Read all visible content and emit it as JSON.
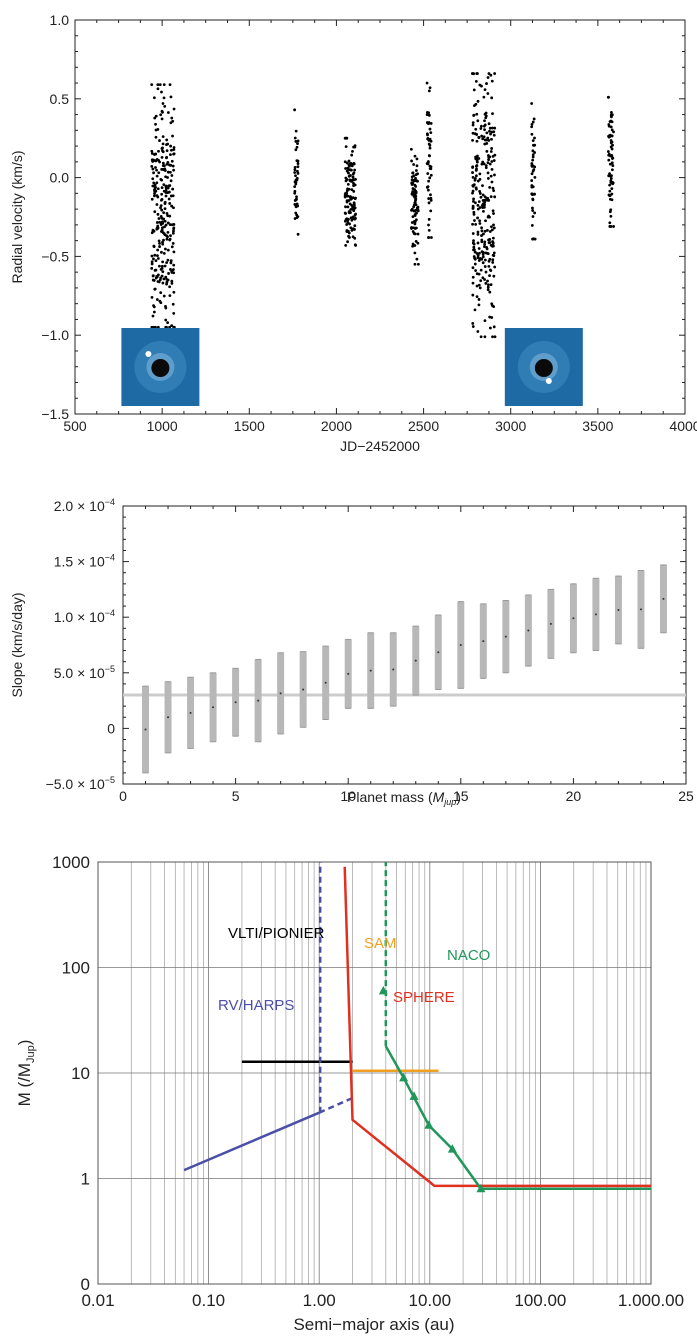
{
  "chart_data": [
    {
      "type": "scatter",
      "xlabel": "JD−2452000",
      "ylabel": "Radial velocity (km/s)",
      "xlim": [
        500,
        4000
      ],
      "ylim": [
        -1.5,
        1.0
      ],
      "x_ticks": [
        "500",
        "1000",
        "1500",
        "2000",
        "2500",
        "3000",
        "3500",
        "4000"
      ],
      "y_ticks": [
        "−1.5",
        "−1.0",
        "−0.5",
        "0.0",
        "0.5",
        "1.0"
      ],
      "marker_color": "#000000",
      "insets": [
        {
          "name": "inset-image-left",
          "center_x": 990,
          "description_color": "#1c6aa6"
        },
        {
          "name": "inset-image-right",
          "center_x": 3190,
          "description_color": "#1c6aa6"
        }
      ],
      "clusters": [
        {
          "x_range": [
            940,
            1070
          ],
          "y_range": [
            -0.95,
            0.59
          ]
        },
        {
          "x_range": [
            1760,
            1780
          ],
          "y_range": [
            -0.36,
            0.43
          ]
        },
        {
          "x_range": [
            2050,
            2110
          ],
          "y_range": [
            -0.43,
            0.25
          ]
        },
        {
          "x_range": [
            2430,
            2470
          ],
          "y_range": [
            -0.55,
            0.18
          ]
        },
        {
          "x_range": [
            2520,
            2545
          ],
          "y_range": [
            -0.38,
            0.6
          ]
        },
        {
          "x_range": [
            2780,
            2910
          ],
          "y_range": [
            -1.01,
            0.66
          ]
        },
        {
          "x_range": [
            3120,
            3140
          ],
          "y_range": [
            -0.39,
            0.47
          ]
        },
        {
          "x_range": [
            3560,
            3590
          ],
          "y_range": [
            -0.31,
            0.51
          ]
        }
      ]
    },
    {
      "type": "scatter",
      "xlabel": "Planet mass (",
      "xlabel_unit": "M",
      "xlabel_sub": "jup",
      "xlabel_close": ")",
      "ylabel": "Slope (km/s/day)",
      "xlim": [
        0,
        25
      ],
      "ylim": [
        -5e-05,
        0.0002
      ],
      "x_ticks": [
        "0",
        "5",
        "10",
        "15",
        "20",
        "25"
      ],
      "y_ticks": [
        {
          "mant": "−5.0 × 10",
          "exp": "−5",
          "value": -5e-05
        },
        {
          "mant": "0",
          "exp": "",
          "value": 0
        },
        {
          "mant": "5.0 × 10",
          "exp": "−5",
          "value": 5e-05
        },
        {
          "mant": "1.0 × 10",
          "exp": "−4",
          "value": 0.0001
        },
        {
          "mant": "1.5 × 10",
          "exp": "−4",
          "value": 0.00015
        },
        {
          "mant": "2.0 × 10",
          "exp": "−4",
          "value": 0.0002
        }
      ],
      "reference_line": 3e-05,
      "series_color": "#b8b8b8",
      "series": [
        {
          "mass": 1,
          "min": -4e-05,
          "max": 3.8e-05
        },
        {
          "mass": 2,
          "min": -2.2e-05,
          "max": 4.2e-05
        },
        {
          "mass": 3,
          "min": -1.8e-05,
          "max": 4.6e-05
        },
        {
          "mass": 4,
          "min": -1.2e-05,
          "max": 5e-05
        },
        {
          "mass": 5,
          "min": -7e-06,
          "max": 5.4e-05
        },
        {
          "mass": 6,
          "min": -1.2e-05,
          "max": 6.2e-05
        },
        {
          "mass": 7,
          "min": -5e-06,
          "max": 6.8e-05
        },
        {
          "mass": 8,
          "min": 1e-06,
          "max": 6.9e-05
        },
        {
          "mass": 9,
          "min": 8e-06,
          "max": 7.4e-05
        },
        {
          "mass": 10,
          "min": 1.8e-05,
          "max": 8e-05
        },
        {
          "mass": 11,
          "min": 1.8e-05,
          "max": 8.6e-05
        },
        {
          "mass": 12,
          "min": 2e-05,
          "max": 8.6e-05
        },
        {
          "mass": 13,
          "min": 3e-05,
          "max": 9.2e-05
        },
        {
          "mass": 14,
          "min": 3.5e-05,
          "max": 0.000102
        },
        {
          "mass": 15,
          "min": 3.6e-05,
          "max": 0.000114
        },
        {
          "mass": 16,
          "min": 4.5e-05,
          "max": 0.000112
        },
        {
          "mass": 17,
          "min": 5e-05,
          "max": 0.000115
        },
        {
          "mass": 18,
          "min": 5.6e-05,
          "max": 0.00012
        },
        {
          "mass": 19,
          "min": 6.3e-05,
          "max": 0.000125
        },
        {
          "mass": 20,
          "min": 6.8e-05,
          "max": 0.00013
        },
        {
          "mass": 21,
          "min": 7e-05,
          "max": 0.000135
        },
        {
          "mass": 22,
          "min": 7.6e-05,
          "max": 0.000137
        },
        {
          "mass": 23,
          "min": 7.2e-05,
          "max": 0.000142
        },
        {
          "mass": 24,
          "min": 8.6e-05,
          "max": 0.000147
        }
      ]
    },
    {
      "type": "line",
      "xlabel": "Semi−major axis (au)",
      "ylabel_prefix": "M (/M",
      "ylabel_sub": "Jup",
      "ylabel_suffix": ")",
      "x_scale": "log",
      "y_scale": "log",
      "grid": true,
      "x_ticks": [
        "0.01",
        "0.10",
        "1.00",
        "10.00",
        "100.00",
        "1.000.00"
      ],
      "x_tick_values": [
        0.01,
        0.1,
        1,
        10,
        100,
        1000
      ],
      "y_ticks": [
        "0",
        "1",
        "10",
        "100",
        "1000"
      ],
      "y_tick_values": [
        0.1,
        1,
        10,
        100,
        1000
      ],
      "series": [
        {
          "name": "VLTI/PIONIER",
          "color": "#000000",
          "x": [
            0.2,
            2.0
          ],
          "y": [
            12.8,
            12.8
          ]
        },
        {
          "name": "RV/HARPS",
          "color": "#4b4fa8",
          "x": [
            0.06,
            1.0
          ],
          "y": [
            1.2,
            4.2
          ],
          "dashed_extension": {
            "x": [
              1.0,
              2.0
            ],
            "y": [
              4.2,
              5.8
            ]
          },
          "vertical_dashed": {
            "x": 1.02,
            "y": [
              4.2,
              1000
            ]
          }
        },
        {
          "name": "SAM",
          "color": "#f0a020",
          "x": [
            2.0,
            4.0,
            12.0
          ],
          "y": [
            10.5,
            10.5,
            10.5
          ]
        },
        {
          "name": "SPHERE",
          "color": "#e03020",
          "x": [
            1.7,
            2.0,
            11.0,
            1000
          ],
          "y": [
            900,
            3.6,
            0.85,
            0.85
          ]
        },
        {
          "name": "NACO",
          "color": "#20965a",
          "x": [
            4.0,
            5.8,
            9.8,
            16.0,
            29.0,
            1000
          ],
          "y": [
            18.0,
            9.0,
            3.2,
            1.9,
            0.8,
            0.8
          ],
          "markers": {
            "x": [
              3.8,
              5.8,
              7.2,
              9.8,
              16.0,
              29.0
            ],
            "y": [
              60,
              9.0,
              6.0,
              3.2,
              1.9,
              0.8
            ]
          },
          "vertical_dashed": {
            "x": 4.0,
            "y": [
              18.0,
              1000
            ]
          }
        }
      ]
    }
  ]
}
